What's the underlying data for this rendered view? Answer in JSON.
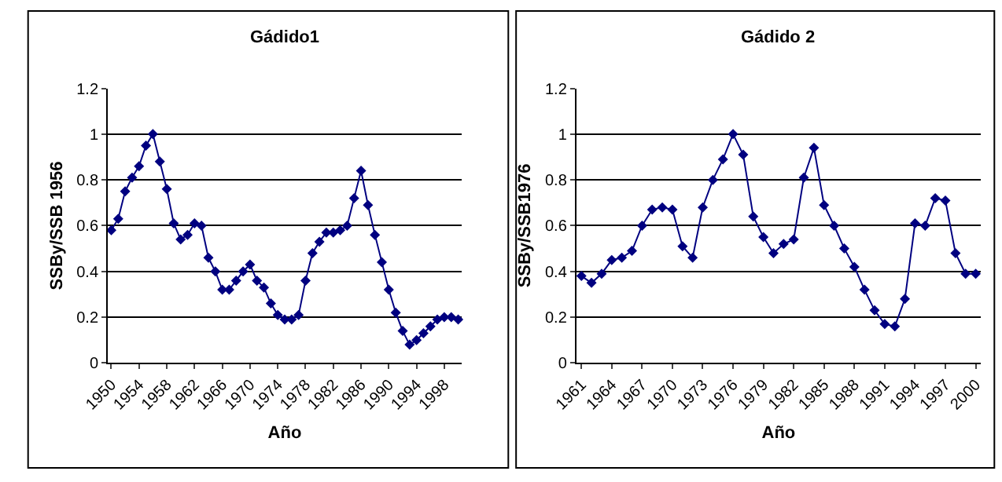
{
  "chart_data": [
    {
      "type": "line",
      "title": "Gádido1",
      "xlabel": "Año",
      "ylabel": "SSBy/SSB 1956",
      "x": [
        1950,
        1951,
        1952,
        1953,
        1954,
        1955,
        1956,
        1957,
        1958,
        1959,
        1960,
        1961,
        1962,
        1963,
        1964,
        1965,
        1966,
        1967,
        1968,
        1969,
        1970,
        1971,
        1972,
        1973,
        1974,
        1975,
        1976,
        1977,
        1978,
        1979,
        1980,
        1981,
        1982,
        1983,
        1984,
        1985,
        1986,
        1987,
        1988,
        1989,
        1990,
        1991,
        1992,
        1993,
        1994,
        1995,
        1996,
        1997,
        1998,
        1999,
        2000
      ],
      "series": [
        {
          "color": "#000080",
          "values": [
            0.58,
            0.63,
            0.75,
            0.81,
            0.86,
            0.95,
            1.0,
            0.88,
            0.76,
            0.61,
            0.54,
            0.56,
            0.61,
            0.6,
            0.46,
            0.4,
            0.32,
            0.32,
            0.36,
            0.4,
            0.43,
            0.36,
            0.33,
            0.26,
            0.21,
            0.19,
            0.19,
            0.21,
            0.36,
            0.48,
            0.53,
            0.57,
            0.57,
            0.58,
            0.6,
            0.72,
            0.84,
            0.69,
            0.56,
            0.44,
            0.32,
            0.22,
            0.14,
            0.08,
            0.1,
            0.13,
            0.16,
            0.19,
            0.2,
            0.2,
            0.19
          ]
        }
      ],
      "xlim": [
        1949.5,
        2000.5
      ],
      "xticks": [
        1950,
        1954,
        1958,
        1962,
        1966,
        1970,
        1974,
        1978,
        1982,
        1986,
        1990,
        1994,
        1998
      ],
      "ylim": [
        0,
        1.2
      ],
      "yticks": [
        0,
        0.2,
        0.4,
        0.6,
        0.8,
        1,
        1.2
      ],
      "grid": "y",
      "marker": "diamond",
      "line_style": "solid"
    },
    {
      "type": "line",
      "title": "Gádido 2",
      "xlabel": "Año",
      "ylabel": "SSBy/SSB1976",
      "x": [
        1961,
        1962,
        1963,
        1964,
        1965,
        1966,
        1967,
        1968,
        1969,
        1970,
        1971,
        1972,
        1973,
        1974,
        1975,
        1976,
        1977,
        1978,
        1979,
        1980,
        1981,
        1982,
        1983,
        1984,
        1985,
        1986,
        1987,
        1988,
        1989,
        1990,
        1991,
        1992,
        1993,
        1994,
        1995,
        1996,
        1997,
        1998,
        1999,
        2000
      ],
      "series": [
        {
          "color": "#000080",
          "values": [
            0.38,
            0.35,
            0.39,
            0.45,
            0.46,
            0.49,
            0.6,
            0.67,
            0.68,
            0.67,
            0.51,
            0.46,
            0.68,
            0.8,
            0.89,
            1.0,
            0.91,
            0.64,
            0.55,
            0.48,
            0.52,
            0.54,
            0.81,
            0.94,
            0.69,
            0.6,
            0.5,
            0.42,
            0.32,
            0.23,
            0.17,
            0.16,
            0.28,
            0.61,
            0.6,
            0.72,
            0.71,
            0.48,
            0.39,
            0.39
          ]
        }
      ],
      "xlim": [
        1960.5,
        2000.5
      ],
      "xticks": [
        1961,
        1964,
        1967,
        1970,
        1973,
        1976,
        1979,
        1982,
        1985,
        1988,
        1991,
        1994,
        1997,
        2000
      ],
      "ylim": [
        0,
        1.2
      ],
      "yticks": [
        0,
        0.2,
        0.4,
        0.6,
        0.8,
        1,
        1.2
      ],
      "grid": "y",
      "marker": "diamond",
      "line_style": "solid"
    }
  ]
}
